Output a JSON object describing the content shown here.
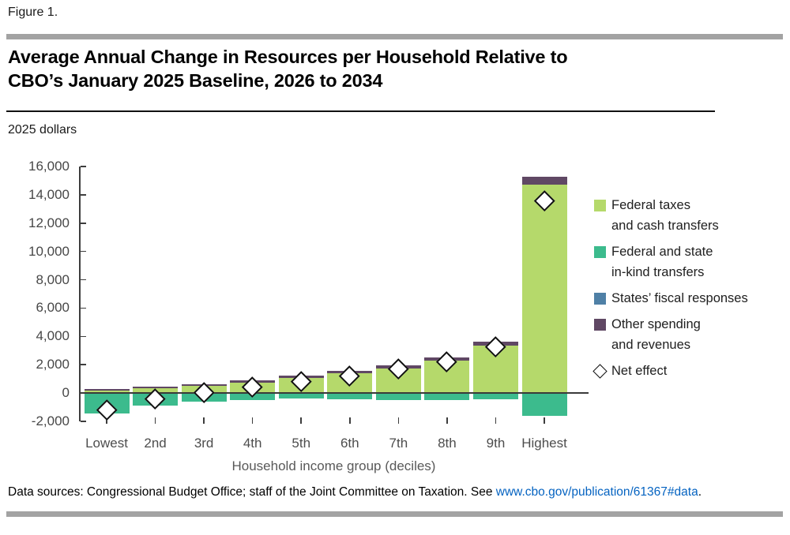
{
  "figure_label": "Figure 1.",
  "title": {
    "line1": "Average Annual Change in Resources per Household Relative to",
    "line2": "CBO’s January 2025 Baseline, 2026 to 2034"
  },
  "units_label": "2025 dollars",
  "footer": {
    "prefix": "Data sources: Congressional Budget Office; staff of the Joint Committee on Taxation. See ",
    "link_text": "www.cbo.gov/publication/61367#data",
    "suffix": "."
  },
  "colors": {
    "green": "#b5d96b",
    "teal": "#3cbb8d",
    "blue": "#4f80a6",
    "purple": "#604864",
    "axis": "#3d3d3d",
    "zero_line": "#3a3a3a"
  },
  "chart_data": {
    "type": "bar",
    "stacked": true,
    "title": "Average Annual Change in Resources per Household Relative to CBO’s January 2025 Baseline, 2026 to 2034",
    "xlabel": "Household income group (deciles)",
    "ylabel": "2025 dollars",
    "ylim": [
      -2000,
      16000
    ],
    "ytick_step": 2000,
    "grid": false,
    "legend_position": "right",
    "categories": [
      "Lowest",
      "2nd",
      "3rd",
      "4th",
      "5th",
      "6th",
      "7th",
      "8th",
      "9th",
      "Highest"
    ],
    "series": [
      {
        "name": "Federal taxes and cash transfers",
        "color_key": "green",
        "values": [
          150,
          320,
          500,
          750,
          1050,
          1400,
          1750,
          2300,
          3350,
          14700
        ]
      },
      {
        "name": "Federal and state in-kind transfers",
        "color_key": "teal",
        "values": [
          -1450,
          -880,
          -600,
          -470,
          -380,
          -430,
          -470,
          -500,
          -430,
          -1600
        ]
      },
      {
        "name": "States’ fiscal responses",
        "color_key": "blue",
        "values": [
          0,
          0,
          0,
          0,
          0,
          0,
          0,
          0,
          0,
          0
        ]
      },
      {
        "name": "Other spending and revenues",
        "color_key": "purple",
        "values": [
          130,
          140,
          140,
          150,
          160,
          180,
          200,
          230,
          280,
          550
        ]
      }
    ],
    "net_effect": {
      "name": "Net effect",
      "values": [
        -1200,
        -400,
        50,
        400,
        800,
        1200,
        1700,
        2200,
        3250,
        13600
      ]
    },
    "legend": [
      {
        "swatch": "green",
        "lines": [
          "Federal taxes",
          "and cash transfers"
        ]
      },
      {
        "swatch": "teal",
        "lines": [
          "Federal and state",
          "in-kind transfers"
        ]
      },
      {
        "swatch": "blue",
        "lines": [
          "States’ fiscal responses"
        ]
      },
      {
        "swatch": "purple",
        "lines": [
          "Other spending",
          "and revenues"
        ]
      },
      {
        "swatch": "diamond",
        "lines": [
          "Net effect"
        ]
      }
    ]
  }
}
